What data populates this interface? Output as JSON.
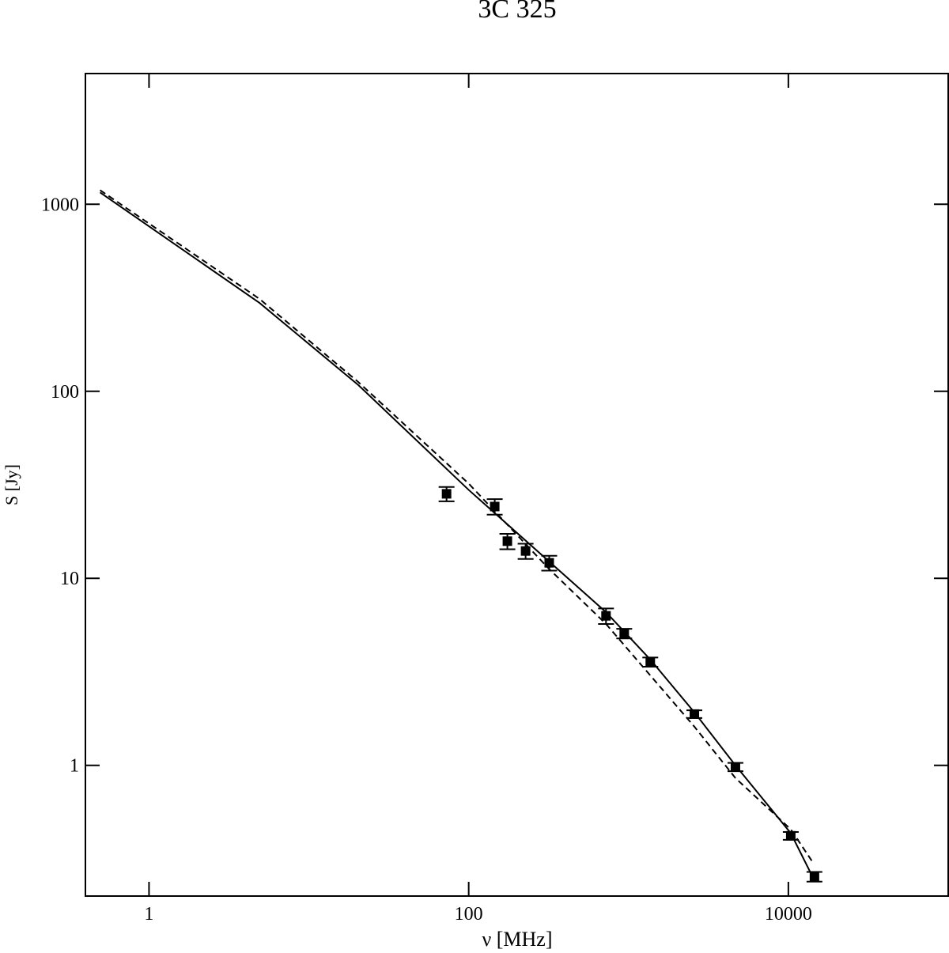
{
  "chart_data": {
    "type": "scatter",
    "title": "3C 325",
    "x_label": "ν [MHz]",
    "y_label": "S [Jy]",
    "xscale": "log",
    "yscale": "log",
    "xlim": [
      0.4,
      100000
    ],
    "ylim": [
      0.2,
      5000
    ],
    "xticks": [
      1,
      100,
      10000
    ],
    "yticks": [
      1,
      10,
      100,
      1000
    ],
    "series": [
      {
        "kind": "points",
        "color": "#000000",
        "x": [
          72.7,
          145.5,
          174.6,
          227,
          319,
          723,
          940,
          1368,
          2582,
          4665,
          10350,
          14560
        ],
        "values": [
          28.3,
          24.2,
          15.8,
          14.0,
          12.1,
          6.3,
          5.07,
          3.57,
          1.88,
          0.98,
          0.42,
          0.254
        ],
        "errors": [
          2.5,
          2.3,
          1.5,
          1.3,
          1.1,
          0.6,
          0.3,
          0.2,
          0.09,
          0.05,
          0.02,
          0.015
        ]
      },
      {
        "kind": "line",
        "dash": "solid",
        "color": "#000000",
        "x": [
          0.494,
          4.91,
          20.4,
          100,
          723,
          1368,
          2582,
          4665,
          10350,
          14000
        ],
        "values": [
          1157,
          297,
          108,
          29.7,
          6.59,
          3.68,
          1.92,
          1.0,
          0.434,
          0.259
        ]
      },
      {
        "kind": "line",
        "dash": "dashed",
        "color": "#000000",
        "x": [
          0.494,
          4.91,
          20.4,
          100,
          319,
          723,
          2582,
          4665,
          10350,
          14000
        ],
        "values": [
          1190,
          312,
          112,
          32.1,
          11.2,
          5.7,
          1.61,
          0.855,
          0.455,
          0.309
        ]
      }
    ]
  }
}
